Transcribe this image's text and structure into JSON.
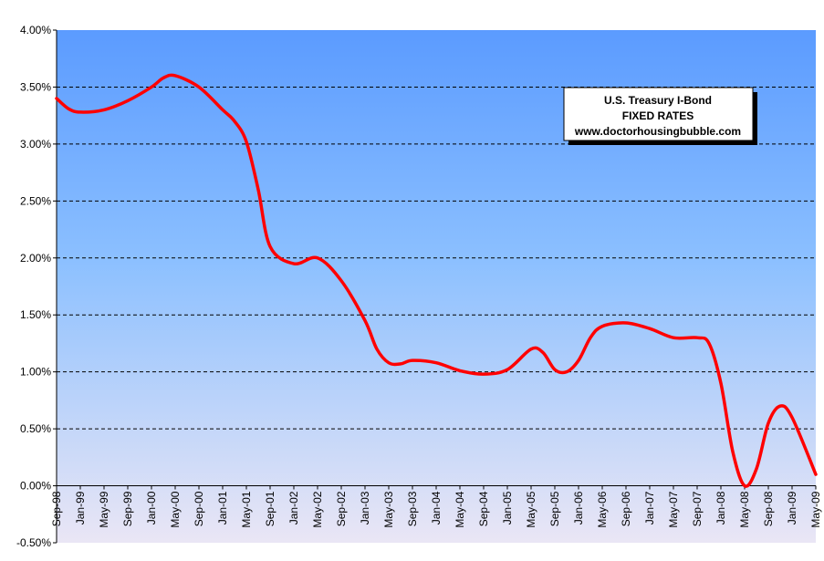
{
  "chart_data": {
    "type": "line",
    "annotation_lines": [
      "U.S. Treasury I-Bond",
      "FIXED RATES",
      "www.doctorhousingbubble.com"
    ],
    "xlabel": "",
    "ylabel": "",
    "ylim": [
      -0.5,
      4.0
    ],
    "y_ticks": [
      "4.00%",
      "3.50%",
      "3.00%",
      "2.50%",
      "2.00%",
      "1.50%",
      "1.00%",
      "0.50%",
      "0.00%",
      "-0.50%"
    ],
    "x_ticks": [
      "Sep-98",
      "Jan-99",
      "May-99",
      "Sep-99",
      "Jan-00",
      "May-00",
      "Sep-00",
      "Jan-01",
      "May-01",
      "Sep-01",
      "Jan-02",
      "May-02",
      "Sep-02",
      "Jan-03",
      "May-03",
      "Sep-03",
      "Jan-04",
      "May-04",
      "Sep-04",
      "Jan-05",
      "May-05",
      "Sep-05",
      "Jan-06",
      "May-06",
      "Sep-06",
      "Jan-07",
      "May-07",
      "Sep-07",
      "Jan-08",
      "May-08",
      "Sep-08",
      "Jan-09",
      "May-09"
    ],
    "grid": "horizontal dashed",
    "line_color": "#ff0000",
    "series": [
      {
        "x": [
          "Sep-98",
          "Nov-98",
          "Jan-99",
          "May-99",
          "Sep-99",
          "Jan-00",
          "Mar-00",
          "May-00",
          "Sep-00",
          "Jan-01",
          "Mar-01",
          "May-01",
          "Jul-01",
          "Sep-01",
          "Jan-02",
          "May-02",
          "Sep-02",
          "Jan-03",
          "Mar-03",
          "May-03",
          "Jul-03",
          "Sep-03",
          "Jan-04",
          "May-04",
          "Sep-04",
          "Jan-05",
          "May-05",
          "Jul-05",
          "Sep-05",
          "Nov-05",
          "Jan-06",
          "Mar-06",
          "May-06",
          "Sep-06",
          "Jan-07",
          "May-07",
          "Sep-07",
          "Nov-07",
          "Jan-08",
          "Mar-08",
          "May-08",
          "Jul-08",
          "Sep-08",
          "Nov-08",
          "Jan-09",
          "May-09"
        ],
        "values": [
          3.4,
          3.31,
          3.28,
          3.3,
          3.38,
          3.5,
          3.58,
          3.6,
          3.5,
          3.3,
          3.2,
          3.02,
          2.6,
          2.1,
          1.95,
          2.0,
          1.8,
          1.45,
          1.2,
          1.08,
          1.07,
          1.1,
          1.08,
          1.01,
          0.98,
          1.02,
          1.2,
          1.17,
          1.02,
          1.0,
          1.1,
          1.3,
          1.4,
          1.43,
          1.38,
          1.3,
          1.3,
          1.25,
          0.9,
          0.3,
          0.0,
          0.15,
          0.55,
          0.7,
          0.6,
          0.1
        ]
      }
    ],
    "background_gradient": [
      "#5b9bff",
      "#eae6f5"
    ]
  }
}
